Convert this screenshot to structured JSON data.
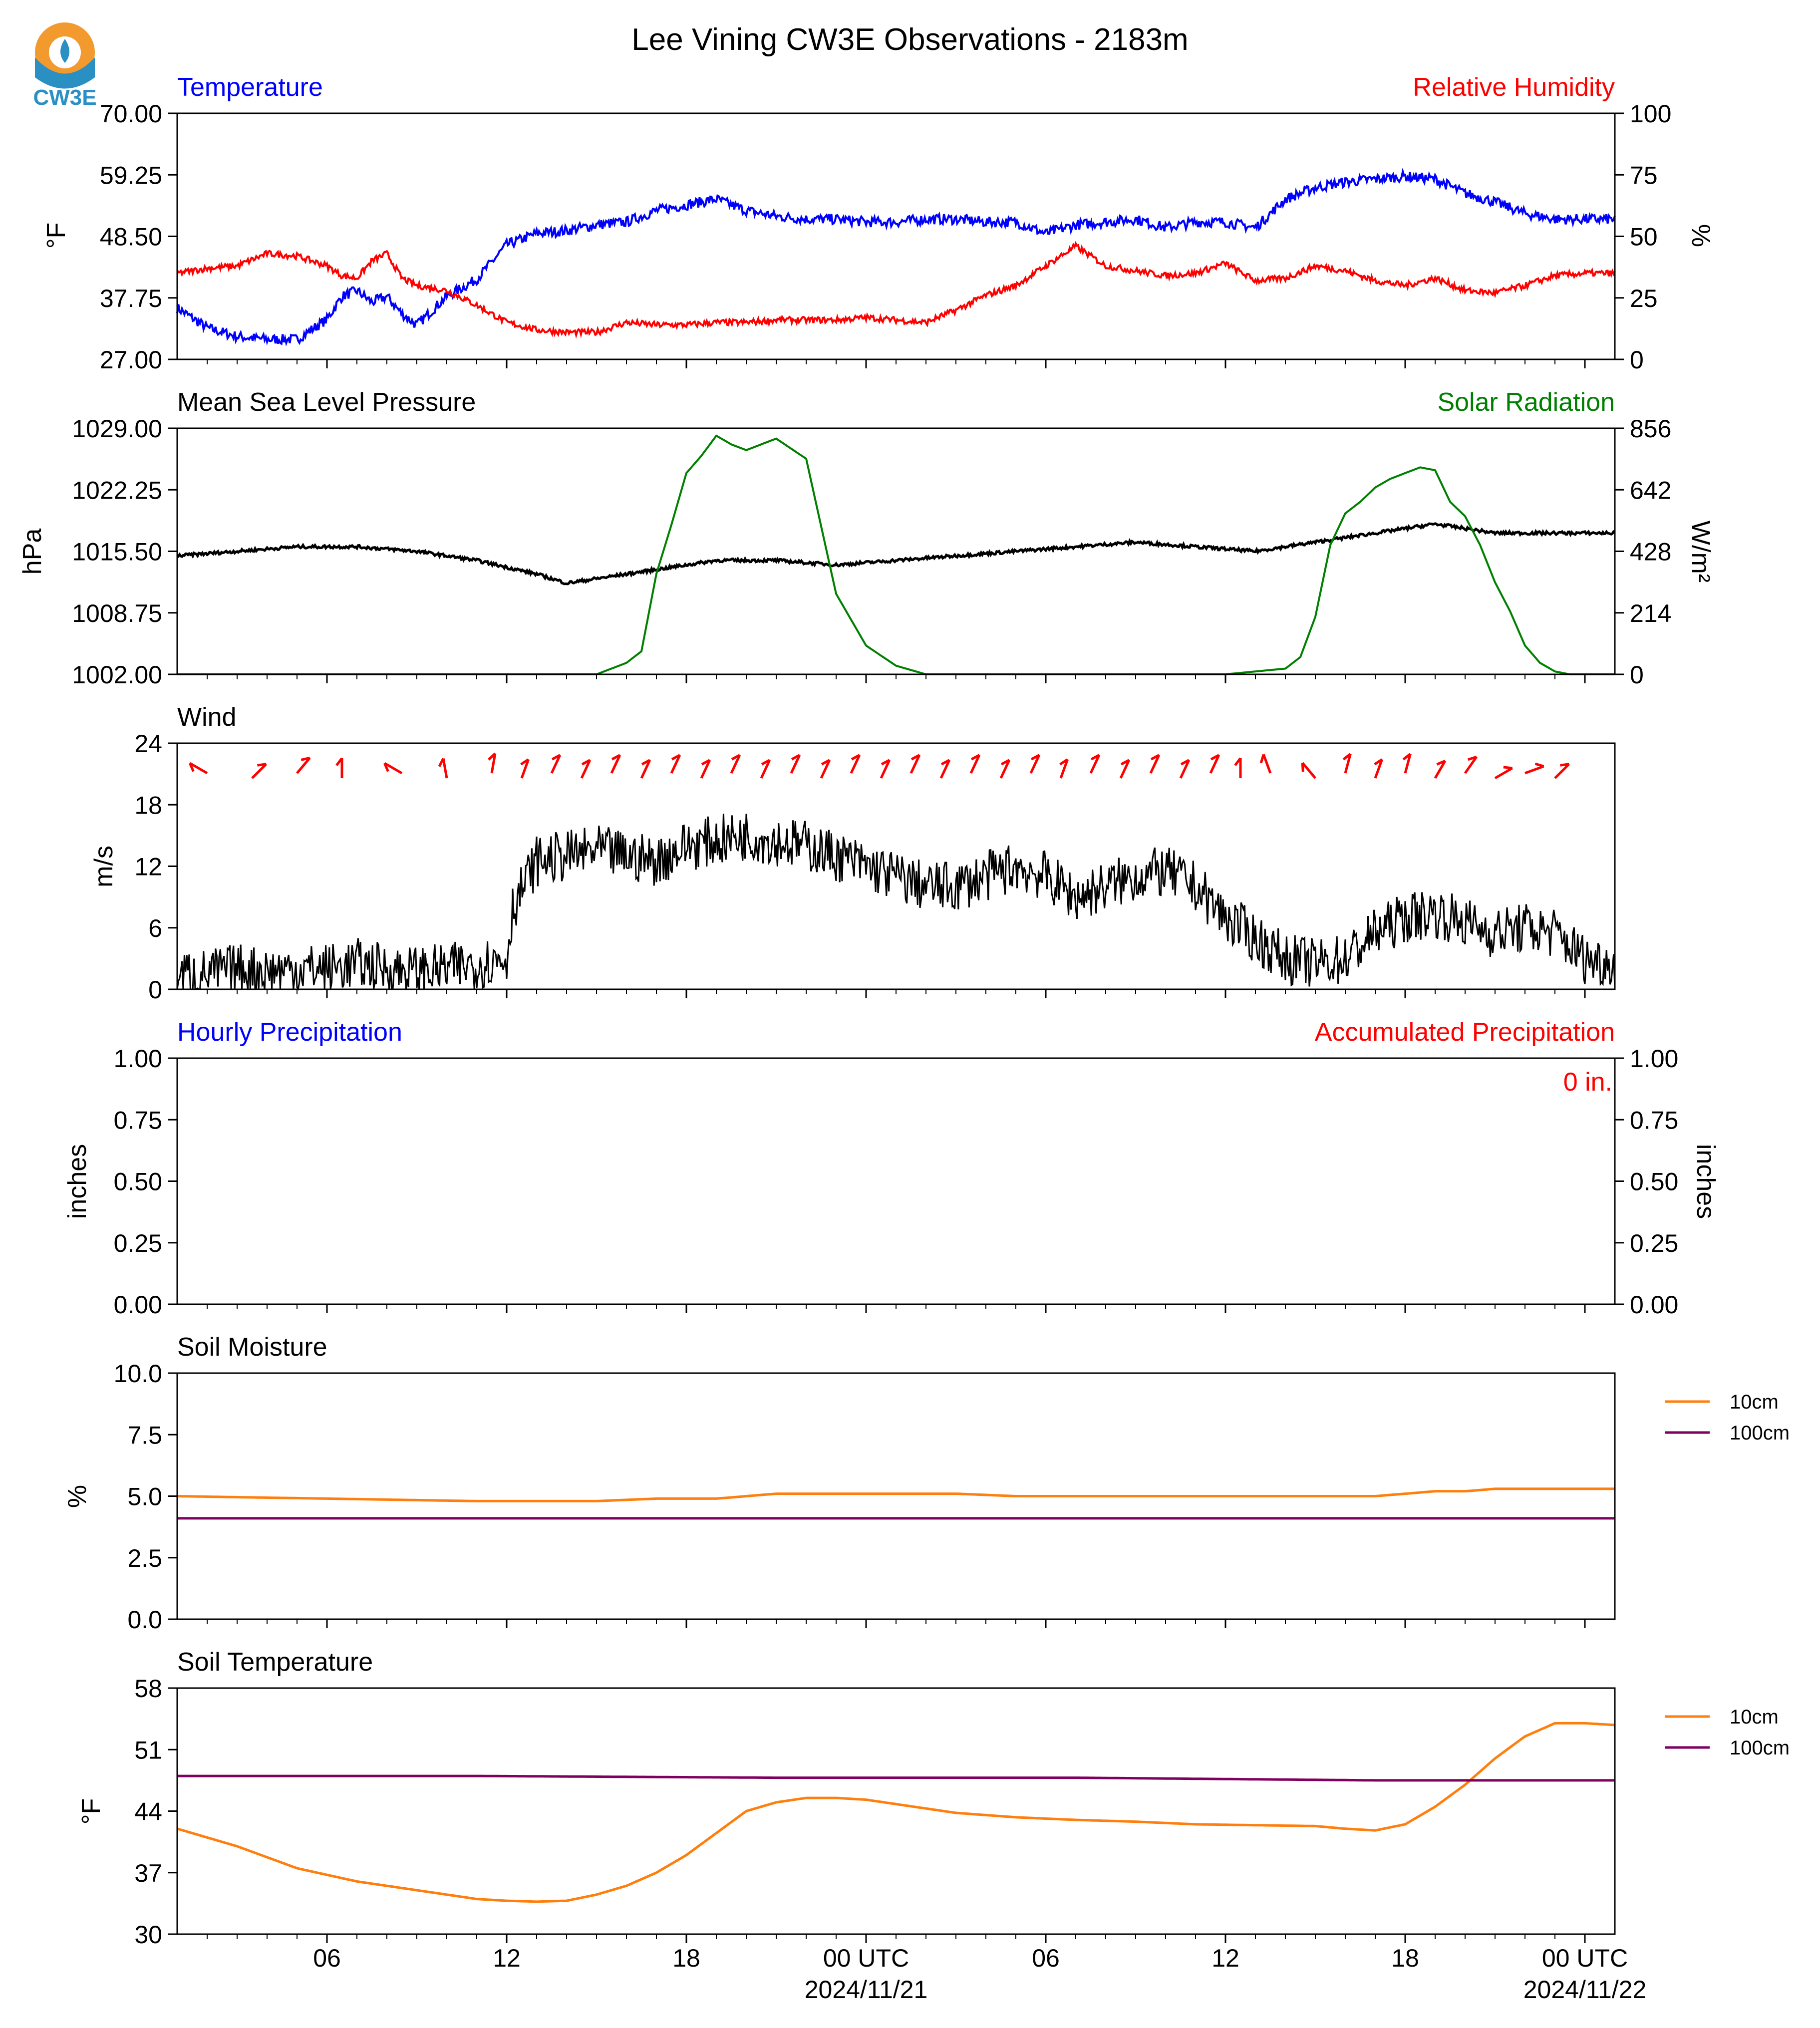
{
  "page": {
    "title": "Lee Vining CW3E Observations - 2183m",
    "logo_text": "CW3E"
  },
  "x_axis": {
    "type": "time",
    "start_hour": 0,
    "end_hour": 48,
    "tick_labels": [
      {
        "hour": 5,
        "label": "06"
      },
      {
        "hour": 11,
        "label": "12"
      },
      {
        "hour": 17,
        "label": "18"
      },
      {
        "hour": 23,
        "label": "00 UTC",
        "date": "2024/11/21"
      },
      {
        "hour": 29,
        "label": "06"
      },
      {
        "hour": 35,
        "label": "12"
      },
      {
        "hour": 41,
        "label": "18"
      },
      {
        "hour": 47,
        "label": "00 UTC",
        "date": "2024/11/22"
      }
    ]
  },
  "panels": {
    "temperature": {
      "left_title": "Temperature",
      "right_title": "Relative Humidity",
      "left_ylabel": "°F",
      "right_ylabel": "%",
      "left_ticks": [
        "70.00",
        "59.25",
        "48.50",
        "37.75",
        "27.00"
      ],
      "right_ticks": [
        "100",
        "75",
        "50",
        "25",
        "0"
      ]
    },
    "pressure": {
      "left_title": "Mean Sea Level Pressure",
      "right_title": "Solar Radiation",
      "left_ylabel": "hPa",
      "right_ylabel": "W/m²",
      "left_ticks": [
        "1029.00",
        "1022.25",
        "1015.50",
        "1008.75",
        "1002.00"
      ],
      "right_ticks": [
        "856",
        "642",
        "428",
        "214",
        "0"
      ]
    },
    "wind": {
      "left_title": "Wind",
      "left_ylabel": "m/s",
      "left_ticks": [
        "24",
        "18",
        "12",
        "6",
        "0"
      ]
    },
    "precip": {
      "left_title": "Hourly Precipitation",
      "right_title": "Accumulated Precipitation",
      "left_ylabel": "inches",
      "right_ylabel": "inches",
      "left_ticks": [
        "1.00",
        "0.75",
        "0.50",
        "0.25",
        "0.00"
      ],
      "right_ticks": [
        "1.00",
        "0.75",
        "0.50",
        "0.25",
        "0.00"
      ],
      "accum_label": "0 in."
    },
    "soil_moisture": {
      "left_title": "Soil Moisture",
      "left_ylabel": "%",
      "left_ticks": [
        "10.0",
        "7.5",
        "5.0",
        "2.5",
        "0.0"
      ],
      "legend": [
        "10cm",
        "100cm"
      ]
    },
    "soil_temp": {
      "left_title": "Soil Temperature",
      "left_ylabel": "°F",
      "left_ticks": [
        "58",
        "51",
        "44",
        "37",
        "30"
      ],
      "legend": [
        "10cm",
        "100cm"
      ]
    }
  },
  "colors": {
    "temperature": "#0000ff",
    "humidity": "#ff0000",
    "pressure": "#000000",
    "solar": "#008000",
    "wind": "#000000",
    "wind_barb": "#ff0000",
    "accum": "#ff0000",
    "soil_10cm": "#ff7f0e",
    "soil_100cm": "#800060",
    "logo_orange": "#f29a2e",
    "logo_blue": "#2a8fc2"
  },
  "chart_data": [
    {
      "type": "line",
      "panel": "temperature",
      "ylim_left": [
        27,
        70
      ],
      "ylim_right": [
        0,
        100
      ],
      "series": [
        {
          "name": "Temperature",
          "axis": "left",
          "x": [
            0,
            1,
            2,
            3,
            4,
            5,
            5.5,
            6,
            6.5,
            7,
            7.5,
            8,
            9,
            10,
            11,
            12,
            13,
            14,
            15,
            16,
            17,
            18,
            19,
            20,
            21,
            22,
            23,
            24,
            25,
            26,
            27,
            28,
            29,
            30,
            31,
            32,
            33,
            34,
            35,
            36,
            37,
            38,
            39,
            40,
            41,
            42,
            43,
            44,
            45,
            46,
            47,
            48
          ],
          "y": [
            36,
            32.5,
            31,
            30.5,
            30.5,
            34,
            38,
            39,
            37,
            38,
            35,
            33,
            38,
            41,
            47,
            49,
            49.5,
            50.5,
            51,
            53,
            54,
            55,
            53,
            52,
            51.5,
            51.5,
            51,
            51,
            51.5,
            51.5,
            51,
            51,
            49,
            50.5,
            51,
            51.5,
            50,
            51,
            51,
            50,
            55,
            57,
            58,
            58.5,
            59,
            58.5,
            56,
            54.5,
            52.5,
            51.5,
            51.5,
            51.5
          ]
        },
        {
          "name": "Relative Humidity",
          "axis": "right",
          "x": [
            0,
            1,
            2,
            3,
            4,
            5,
            5.5,
            6,
            6.5,
            7,
            7.5,
            8,
            9,
            10,
            11,
            12,
            13,
            14,
            15,
            16,
            17,
            18,
            19,
            20,
            21,
            22,
            23,
            24,
            25,
            26,
            27,
            28,
            29,
            30,
            31,
            32,
            33,
            34,
            35,
            36,
            37,
            38,
            39,
            40,
            41,
            42,
            43,
            44,
            45,
            46,
            47,
            48
          ],
          "y": [
            35,
            37,
            38,
            43,
            42,
            38,
            34,
            33,
            40,
            43,
            33,
            30,
            28,
            22,
            15,
            12,
            11,
            11,
            15,
            14,
            14,
            15,
            15,
            16,
            16,
            16,
            17,
            16,
            15,
            20,
            26,
            30,
            38,
            46,
            38,
            36,
            34,
            35,
            39,
            32,
            33,
            38,
            36,
            32,
            30,
            33,
            28,
            27,
            30,
            34,
            35,
            35
          ]
        }
      ]
    },
    {
      "type": "line",
      "panel": "pressure",
      "ylim_left": [
        1002,
        1029
      ],
      "ylim_right": [
        0,
        856
      ],
      "series": [
        {
          "name": "Mean Sea Level Pressure",
          "axis": "left",
          "x": [
            0,
            2,
            4,
            6,
            8,
            10,
            12,
            13,
            14,
            16,
            18,
            20,
            22,
            24,
            26,
            28,
            30,
            32,
            34,
            36,
            38,
            40,
            41,
            42,
            44,
            46,
            48
          ],
          "y": [
            1015,
            1015.5,
            1016,
            1016,
            1015.5,
            1014.5,
            1013,
            1012,
            1012.5,
            1013.5,
            1014.5,
            1014.5,
            1014,
            1014.5,
            1015,
            1015.5,
            1016,
            1016.5,
            1016,
            1015.5,
            1016.5,
            1017.5,
            1018,
            1018.5,
            1017.5,
            1017.5,
            1017.5
          ]
        },
        {
          "name": "Solar Radiation",
          "axis": "right",
          "x": [
            0,
            14,
            15,
            15.5,
            16,
            16.5,
            17,
            17.5,
            18,
            18.5,
            19,
            20,
            21,
            22,
            23,
            24,
            25,
            35,
            37,
            37.5,
            38,
            38.5,
            39,
            39.5,
            40,
            40.5,
            41,
            41.5,
            42,
            42.5,
            43,
            43.5,
            44,
            44.5,
            45,
            45.5,
            46,
            46.5,
            47,
            48
          ],
          "y": [
            0,
            0,
            40,
            80,
            350,
            520,
            700,
            760,
            830,
            800,
            780,
            820,
            750,
            280,
            100,
            30,
            0,
            0,
            20,
            60,
            200,
            450,
            560,
            600,
            650,
            680,
            700,
            720,
            710,
            600,
            550,
            450,
            320,
            220,
            100,
            40,
            10,
            0,
            0,
            0
          ]
        }
      ]
    },
    {
      "type": "line",
      "panel": "wind",
      "ylim": [
        0,
        24
      ],
      "series": [
        {
          "name": "Wind",
          "x": [
            0,
            1,
            2,
            3,
            4,
            5,
            6,
            7,
            8,
            9,
            10,
            11,
            11.2,
            12,
            13,
            14,
            15,
            16,
            17,
            18,
            19,
            20,
            21,
            22,
            23,
            24,
            25,
            26,
            27,
            28,
            29,
            30,
            31,
            32,
            33,
            34,
            35,
            36,
            37,
            38,
            39,
            40,
            41,
            42,
            43,
            44,
            45,
            46,
            47,
            48
          ],
          "y": [
            1.5,
            1.5,
            2,
            1.8,
            2,
            2,
            2.5,
            2,
            1.8,
            2,
            2.5,
            3,
            8,
            12.5,
            13,
            13.5,
            13,
            12.5,
            14,
            14.5,
            15,
            14.5,
            14,
            13,
            12,
            11,
            10,
            10,
            11,
            12,
            11,
            9,
            10,
            11,
            11.5,
            10,
            7,
            5,
            3,
            2.5,
            3,
            5.5,
            7,
            7.5,
            6.5,
            5.5,
            6,
            5.5,
            3,
            2.5
          ]
        }
      ],
      "barbs": {
        "hours": [
          1,
          2.5,
          4,
          5.5,
          7.5,
          9,
          10.5,
          11.5,
          12.5,
          13.5,
          14.5,
          15.5,
          16.5,
          17.5,
          18.5,
          19.5,
          20.5,
          21.5,
          22.5,
          23.5,
          24.5,
          25.5,
          26.5,
          27.5,
          28.5,
          29.5,
          30.5,
          31.5,
          32.5,
          33.5,
          34.5,
          35.5,
          36.5,
          38,
          39,
          40,
          41,
          42,
          43,
          44,
          45,
          46
        ],
        "direction_deg": [
          150,
          45,
          50,
          90,
          150,
          100,
          80,
          70,
          65,
          65,
          65,
          65,
          65,
          65,
          65,
          65,
          65,
          65,
          65,
          65,
          65,
          65,
          65,
          65,
          65,
          70,
          65,
          65,
          65,
          65,
          65,
          90,
          110,
          130,
          75,
          70,
          75,
          60,
          55,
          30,
          20,
          45
        ]
      }
    },
    {
      "type": "line",
      "panel": "precip",
      "ylim": [
        0,
        1
      ],
      "series": [
        {
          "name": "Hourly Precipitation",
          "x": [
            0,
            48
          ],
          "y": [
            0,
            0
          ]
        },
        {
          "name": "Accumulated Precipitation",
          "x": [
            0,
            48
          ],
          "y": [
            0,
            0
          ]
        }
      ]
    },
    {
      "type": "line",
      "panel": "soil_moisture",
      "ylim": [
        0,
        10
      ],
      "series": [
        {
          "name": "10cm",
          "x": [
            0,
            5,
            10,
            14,
            16,
            18,
            19,
            20,
            22,
            24,
            26,
            28,
            30,
            32,
            34,
            36,
            38,
            39,
            40,
            41,
            42,
            43,
            44,
            46,
            48
          ],
          "y": [
            5,
            4.9,
            4.8,
            4.8,
            4.9,
            4.9,
            5,
            5.1,
            5.1,
            5.1,
            5.1,
            5,
            5,
            5,
            5,
            5,
            5,
            5,
            5,
            5.1,
            5.2,
            5.2,
            5.3,
            5.3,
            5.3
          ]
        },
        {
          "name": "100cm",
          "x": [
            0,
            48
          ],
          "y": [
            4.1,
            4.1
          ]
        }
      ]
    },
    {
      "type": "line",
      "panel": "soil_temp",
      "ylim": [
        30,
        58
      ],
      "series": [
        {
          "name": "10cm",
          "x": [
            0,
            2,
            4,
            6,
            8,
            10,
            11,
            12,
            13,
            14,
            15,
            16,
            17,
            18,
            19,
            20,
            21,
            22,
            23,
            24,
            25,
            26,
            28,
            30,
            32,
            34,
            36,
            38,
            39,
            40,
            41,
            42,
            43,
            44,
            45,
            46,
            47,
            48
          ],
          "y": [
            42,
            40,
            37.5,
            36,
            35,
            34,
            33.8,
            33.7,
            33.8,
            34.5,
            35.5,
            37,
            39,
            41.5,
            44,
            45,
            45.5,
            45.5,
            45.3,
            44.8,
            44.3,
            43.8,
            43.3,
            43,
            42.8,
            42.5,
            42.4,
            42.3,
            42,
            41.8,
            42.5,
            44.5,
            47,
            50,
            52.5,
            54,
            54,
            53.8
          ]
        },
        {
          "name": "100cm",
          "x": [
            0,
            10,
            20,
            30,
            40,
            48
          ],
          "y": [
            48,
            48,
            47.8,
            47.8,
            47.5,
            47.5
          ]
        }
      ]
    }
  ]
}
